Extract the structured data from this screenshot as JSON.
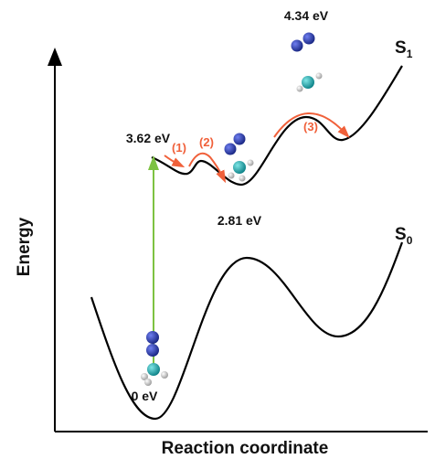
{
  "axes": {
    "y_label": "Energy",
    "x_label": "Reaction coordinate"
  },
  "states": [
    {
      "symbol": "S",
      "subscript": "1"
    },
    {
      "symbol": "S",
      "subscript": "0"
    }
  ],
  "energies": [
    "3.62 eV",
    "2.81 eV",
    "4.34 eV",
    "0 eV"
  ],
  "steps": [
    "(1)",
    "(2)",
    "(3)"
  ]
}
